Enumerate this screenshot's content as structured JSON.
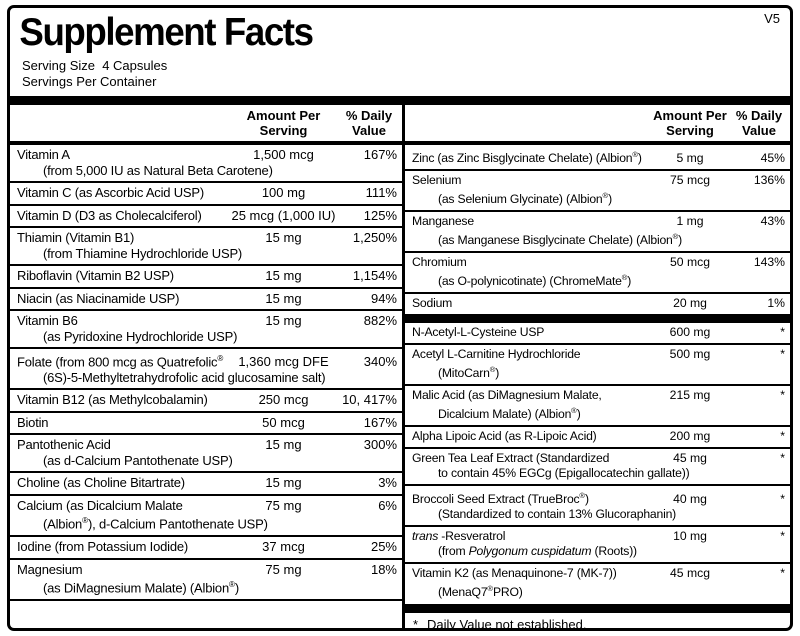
{
  "version_tag": "V5",
  "title": "Supplement Facts",
  "serving": {
    "size": "Serving Size  4 Capsules",
    "per_container": "Servings Per Container"
  },
  "colors": {
    "ink": "#000000",
    "background": "#ffffff"
  },
  "table_header": {
    "amount_line1": "Amount Per",
    "amount_line2": "Serving",
    "dv_line1": "% Daily",
    "dv_line2": "Value"
  },
  "left_column": {
    "rows": [
      {
        "name": "Vitamin A",
        "amount": "1,500 mcg",
        "dv": "167%",
        "note": "(from 5,000 IU as Natural Beta Carotene)"
      },
      {
        "name": "Vitamin C (as Ascorbic Acid USP)",
        "amount": "100 mg",
        "dv": "111%"
      },
      {
        "name": "Vitamin D (D3 as Cholecalciferol)",
        "amount": "25 mcg (1,000 IU)",
        "dv": "125%"
      },
      {
        "name": "Thiamin (Vitamin B1)",
        "amount": "15 mg",
        "dv": "1,250%",
        "note": "(from Thiamine Hydrochloride USP)"
      },
      {
        "name": "Riboflavin (Vitamin B2 USP)",
        "amount": "15 mg",
        "dv": "1,154%"
      },
      {
        "name": "Niacin (as Niacinamide USP)",
        "amount": "15 mg",
        "dv": "94%"
      },
      {
        "name": "Vitamin B6",
        "amount": "15 mg",
        "dv": "882%",
        "note": "(as Pyridoxine Hydrochloride USP)"
      },
      {
        "name": "Folate (from 800 mcg as Quatrefolic®",
        "amount": "1,360 mcg DFE",
        "dv": "340%",
        "note": "(6S)-5-Methyltetrahydrofolic acid glucosamine salt)"
      },
      {
        "name": "Vitamin B12 (as Methylcobalamin)",
        "amount": "250 mcg",
        "dv": "10, 417%"
      },
      {
        "name": "Biotin",
        "amount": "50 mcg",
        "dv": "167%"
      },
      {
        "name": "Pantothenic Acid",
        "amount": "15 mg",
        "dv": "300%",
        "note": "(as d-Calcium Pantothenate USP)"
      },
      {
        "name": "Choline (as Choline Bitartrate)",
        "amount": "15 mg",
        "dv": "3%"
      },
      {
        "name": "Calcium (as Dicalcium Malate",
        "amount": "75 mg",
        "dv": "6%",
        "note": "(Albion®), d-Calcium Pantothenate USP)"
      },
      {
        "name": "Iodine (from Potassium Iodide)",
        "amount": "37 mcg",
        "dv": "25%"
      },
      {
        "name": "Magnesium",
        "amount": "75 mg",
        "dv": "18%",
        "note": "(as DiMagnesium Malate) (Albion®)"
      }
    ]
  },
  "right_column": {
    "group1": [
      {
        "name": "Zinc (as Zinc Bisglycinate Chelate) (Albion®)",
        "amount": "5 mg",
        "dv": "45%"
      },
      {
        "name": "Selenium",
        "amount": "75 mcg",
        "dv": "136%",
        "note": "(as Selenium Glycinate) (Albion®)"
      },
      {
        "name": "Manganese",
        "amount": "1 mg",
        "dv": "43%",
        "note": "(as Manganese Bisglycinate Chelate) (Albion®)"
      },
      {
        "name": "Chromium",
        "amount": "50 mcg",
        "dv": "143%",
        "note": "(as O-polynicotinate) (ChromeMate®)"
      },
      {
        "name": "Sodium",
        "amount": "20 mg",
        "dv": "1%"
      }
    ],
    "group2": [
      {
        "name": "N-Acetyl-L-Cysteine USP",
        "amount": "600 mg",
        "dv": "*"
      },
      {
        "name": "Acetyl L-Carnitine Hydrochloride",
        "amount": "500 mg",
        "dv": "*",
        "note": "(MitoCarn®)"
      },
      {
        "name": "Malic Acid (as DiMagnesium Malate,",
        "amount": "215 mg",
        "dv": "*",
        "note": "Dicalcium Malate) (Albion®)"
      },
      {
        "name": "Alpha Lipoic Acid (as R-Lipoic Acid)",
        "amount": "200 mg",
        "dv": "*"
      },
      {
        "name": "Green Tea Leaf Extract (Standardized",
        "amount": "45 mg",
        "dv": "*",
        "note": "to contain 45% EGCg (Epigallocatechin gallate))"
      },
      {
        "name": "Broccoli Seed Extract (TrueBroc®)",
        "amount": "40 mg",
        "dv": "*",
        "note": "(Standardized to contain 13% Glucoraphanin)"
      },
      {
        "name": "_trans_ -Resveratrol",
        "amount": "10 mg",
        "dv": "*",
        "note": "(from _Polygonum cuspidatum_ (Roots))"
      },
      {
        "name": "Vitamin K2 (as Menaquinone-7 (MK-7))",
        "amount": "45 mcg",
        "dv": "*",
        "note": "(MenaQ7®PRO)"
      }
    ]
  },
  "footnote": {
    "symbol": "*",
    "text": "Daily Value not established."
  }
}
